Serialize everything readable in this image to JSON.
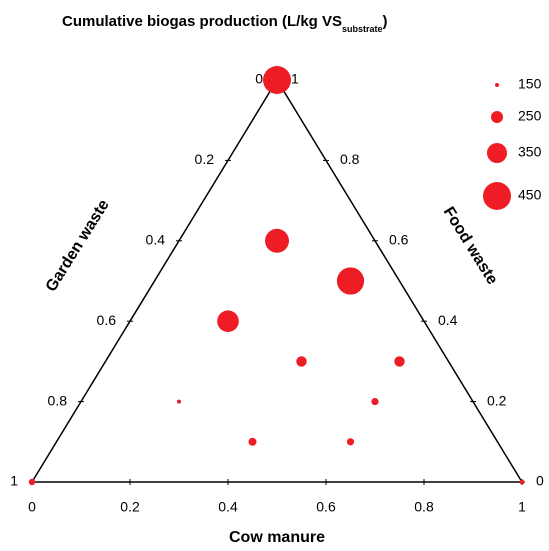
{
  "chart_data": {
    "type": "ternary",
    "title": "Cumulative biogas production (L/kg VS",
    "title_subscript": "substrate",
    "title_end": ")",
    "bottom_axis_label": "Cow manure",
    "left_axis_label": "Garden waste",
    "right_axis_label": "Food waste",
    "color": "#ee1c25",
    "bottom_ticks": [
      0,
      0.2,
      0.4,
      0.6,
      0.8,
      1
    ],
    "left_ticks": [
      0,
      0.2,
      0.4,
      0.6,
      0.8,
      1
    ],
    "right_ticks": [
      0,
      0.2,
      0.4,
      0.6,
      0.8,
      1
    ],
    "cow_manure": [
      0,
      0.2,
      0.4,
      0.2,
      0.4,
      0.6,
      0.2,
      0.6,
      0.4,
      0.6,
      0,
      1
    ],
    "food_waste": [
      1,
      0.6,
      0.5,
      0.4,
      0.3,
      0.3,
      0.2,
      0.2,
      0.1,
      0.1,
      0,
      0
    ],
    "garden_waste": [
      0,
      0.2,
      0.1,
      0.4,
      0.3,
      0.1,
      0.6,
      0.2,
      0.5,
      0.3,
      1,
      0
    ],
    "values": [
      450,
      400,
      440,
      370,
      230,
      230,
      150,
      190,
      200,
      190,
      180,
      160
    ],
    "legend_sizes": [
      150,
      250,
      350,
      450
    ]
  }
}
